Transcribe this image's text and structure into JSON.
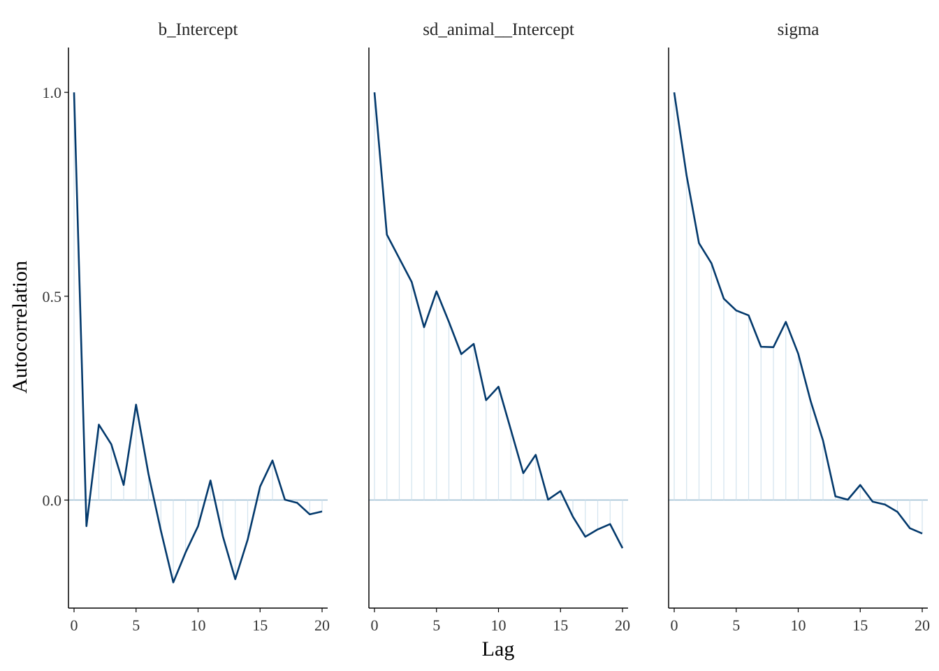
{
  "chart_data": {
    "type": "line",
    "ylabel": "Autocorrelation",
    "xlabel": "Lag",
    "ylim": [
      -0.265,
      1.11
    ],
    "xlim": [
      -0.45,
      20.45
    ],
    "xticks": [
      0,
      5,
      10,
      15,
      20
    ],
    "yticks": [
      0.0,
      0.5,
      1.0
    ],
    "ytick_labels": [
      "0.0",
      "0.5",
      "1.0"
    ],
    "grid": false,
    "lags": [
      0,
      1,
      2,
      3,
      4,
      5,
      6,
      7,
      8,
      9,
      10,
      11,
      12,
      13,
      14,
      15,
      16,
      17,
      18,
      19,
      20
    ],
    "panels": [
      {
        "title": "b_Intercept",
        "values": [
          1.0,
          -0.064,
          0.185,
          0.137,
          0.037,
          0.234,
          0.064,
          -0.075,
          -0.202,
          -0.128,
          -0.064,
          0.048,
          -0.089,
          -0.194,
          -0.097,
          0.033,
          0.097,
          0.001,
          -0.007,
          -0.035,
          -0.028
        ]
      },
      {
        "title": "sd_animal__Intercept",
        "values": [
          1.0,
          0.651,
          0.593,
          0.535,
          0.424,
          0.512,
          0.437,
          0.358,
          0.383,
          0.245,
          0.278,
          0.172,
          0.066,
          0.111,
          0.001,
          0.022,
          -0.041,
          -0.09,
          -0.072,
          -0.059,
          -0.118
        ]
      },
      {
        "title": "sigma",
        "values": [
          1.0,
          0.796,
          0.63,
          0.581,
          0.494,
          0.465,
          0.453,
          0.376,
          0.375,
          0.437,
          0.359,
          0.243,
          0.146,
          0.009,
          0.001,
          0.037,
          -0.004,
          -0.011,
          -0.029,
          -0.069,
          -0.082
        ]
      }
    ]
  }
}
